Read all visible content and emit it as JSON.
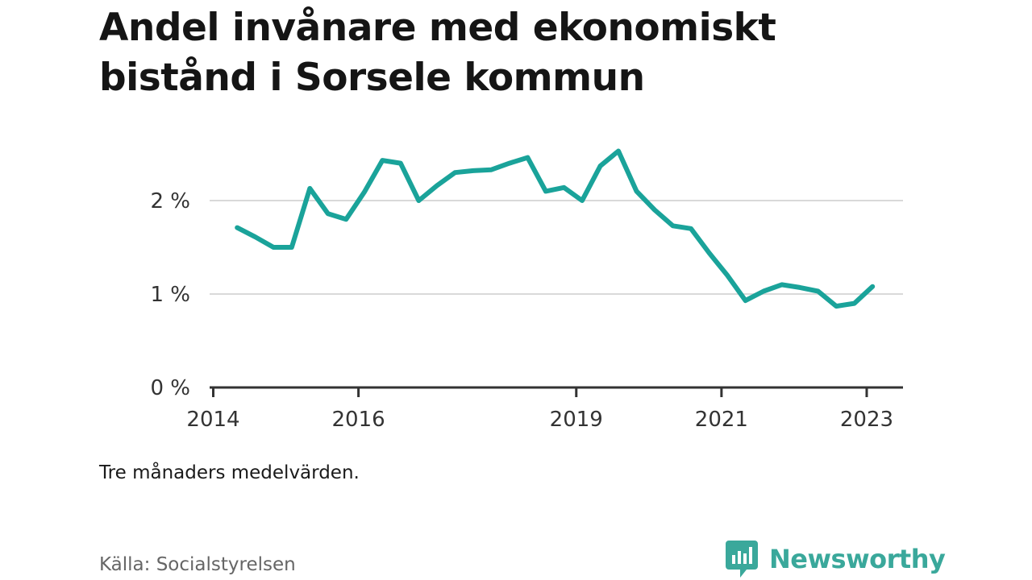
{
  "header": {
    "title": "Andel invånare med ekonomiskt bistånd i Sorsele kommun"
  },
  "footer": {
    "note": "Tre månaders medelvärden.",
    "source": "Källa: Socialstyrelsen",
    "brand": "Newsworthy"
  },
  "colors": {
    "line": "#1aa39a",
    "grid": "#d9d9d9",
    "axis": "#333333",
    "brand": "#3aa89b"
  },
  "chart_data": {
    "type": "line",
    "title": "Andel invånare med ekonomiskt bistånd i Sorsele kommun",
    "xlabel": "",
    "ylabel": "",
    "x_tick_labels": [
      "2014",
      "2016",
      "2019",
      "2021",
      "2023"
    ],
    "x_ticks": [
      2014.0,
      2016.0,
      2019.0,
      2021.0,
      2023.0
    ],
    "y_tick_labels": [
      "0 %",
      "1 %",
      "2 %"
    ],
    "y_ticks": [
      0,
      1,
      2
    ],
    "xlim": [
      2013.95,
      2023.5
    ],
    "ylim": [
      0,
      2.6
    ],
    "grid": "horizontal",
    "legend": "none",
    "series": [
      {
        "x": [
          2014.33,
          2014.58,
          2014.83,
          2015.08,
          2015.33,
          2015.58,
          2015.83,
          2016.08,
          2016.33,
          2016.58,
          2016.83,
          2017.08,
          2017.33,
          2017.58,
          2017.83,
          2018.08,
          2018.33,
          2018.58,
          2018.83,
          2019.08,
          2019.33,
          2019.58,
          2019.83,
          2020.08,
          2020.33,
          2020.58,
          2020.83,
          2021.08,
          2021.33,
          2021.58,
          2021.83,
          2022.08,
          2022.33,
          2022.58,
          2022.83,
          2023.08
        ],
        "values": [
          1.71,
          1.61,
          1.5,
          1.5,
          2.13,
          1.86,
          1.8,
          2.09,
          2.43,
          2.4,
          2.0,
          2.16,
          2.3,
          2.32,
          2.33,
          2.4,
          2.46,
          2.1,
          2.14,
          2.0,
          2.37,
          2.53,
          2.1,
          1.9,
          1.73,
          1.7,
          1.44,
          1.2,
          0.93,
          1.03,
          1.1,
          1.07,
          1.03,
          0.87,
          0.9,
          1.08
        ]
      }
    ]
  }
}
